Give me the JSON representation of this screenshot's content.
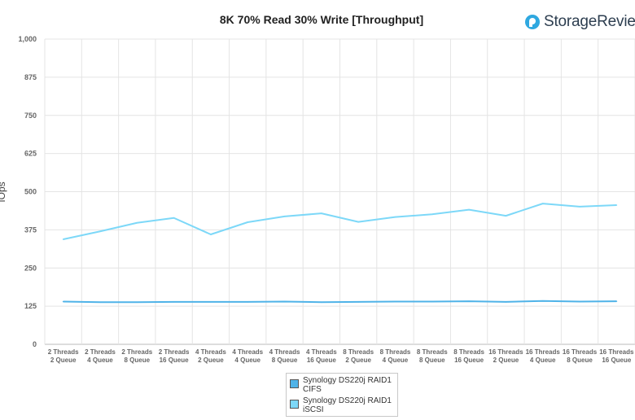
{
  "brand": {
    "text": "StorageReview",
    "icon": "storagereview-logo-icon",
    "color": "#2d3e50",
    "accent": "#2fa8e0"
  },
  "chart_data": {
    "type": "line",
    "title": "8K 70% Read 30% Write [Throughput]",
    "xlabel": "",
    "ylabel": "IOps",
    "ylim": [
      0,
      1000
    ],
    "yticks": [
      0,
      125,
      250,
      375,
      500,
      625,
      750,
      875,
      1000
    ],
    "ytick_labels": [
      "0",
      "125",
      "250",
      "375",
      "500",
      "625",
      "750",
      "875",
      "1,000"
    ],
    "grid": true,
    "legend_position": "bottom-center",
    "categories": [
      [
        "2 Threads",
        "2 Queue"
      ],
      [
        "2 Threads",
        "4 Queue"
      ],
      [
        "2 Threads",
        "8 Queue"
      ],
      [
        "2 Threads",
        "16 Queue"
      ],
      [
        "4 Threads",
        "2 Queue"
      ],
      [
        "4 Threads",
        "4 Queue"
      ],
      [
        "4 Threads",
        "8 Queue"
      ],
      [
        "4 Threads",
        "16 Queue"
      ],
      [
        "8 Threads",
        "2 Queue"
      ],
      [
        "8 Threads",
        "4 Queue"
      ],
      [
        "8 Threads",
        "8 Queue"
      ],
      [
        "8 Threads",
        "16 Queue"
      ],
      [
        "16 Threads",
        "2 Queue"
      ],
      [
        "16 Threads",
        "4 Queue"
      ],
      [
        "16 Threads",
        "8 Queue"
      ],
      [
        "16 Threads",
        "16 Queue"
      ]
    ],
    "series": [
      {
        "name": "Synology DS220j RAID1 CIFS",
        "legend_lines": [
          "Synology DS220j RAID1",
          "CIFS"
        ],
        "color": "#4fb3e8",
        "values": [
          140,
          138,
          138,
          139,
          139,
          139,
          140,
          138,
          139,
          140,
          140,
          141,
          139,
          142,
          140,
          141
        ]
      },
      {
        "name": "Synology DS220j RAID1 iSCSI",
        "legend_lines": [
          "Synology DS220j RAID1",
          "iSCSI"
        ],
        "color": "#7dd8f8",
        "values": [
          344,
          370,
          398,
          414,
          360,
          400,
          419,
          429,
          401,
          417,
          426,
          441,
          421,
          461,
          451,
          456
        ]
      }
    ]
  }
}
